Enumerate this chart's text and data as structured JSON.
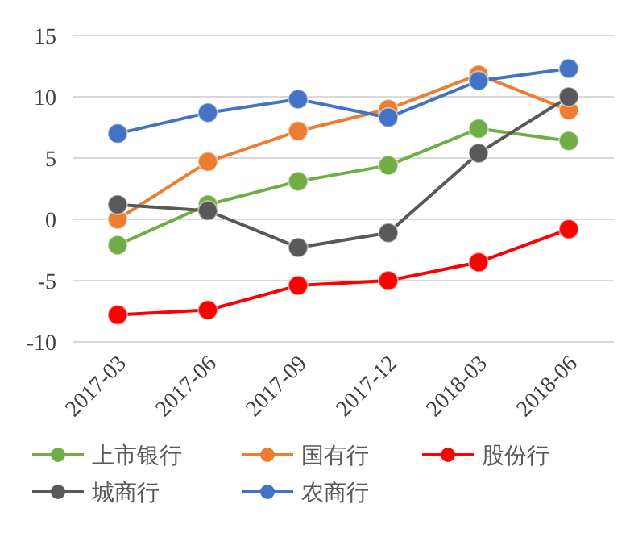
{
  "chart_data": {
    "type": "line",
    "categories": [
      "2017-03",
      "2017-06",
      "2017-09",
      "2017-12",
      "2018-03",
      "2018-06"
    ],
    "series": [
      {
        "name": "上市银行",
        "color": "#70ad47",
        "values": [
          -2.1,
          1.2,
          3.1,
          4.4,
          7.4,
          6.4
        ]
      },
      {
        "name": "国有行",
        "color": "#ed7d31",
        "values": [
          0,
          4.7,
          7.2,
          9.0,
          11.8,
          8.9
        ]
      },
      {
        "name": "股份行",
        "color": "#ff0000",
        "values": [
          -7.8,
          -7.4,
          -5.4,
          -5.0,
          -3.5,
          -0.8
        ]
      },
      {
        "name": "城商行",
        "color": "#595959",
        "values": [
          1.2,
          0.7,
          -2.3,
          -1.1,
          5.4,
          10.0
        ]
      },
      {
        "name": "农商行",
        "color": "#4472c4",
        "values": [
          7.0,
          8.7,
          9.8,
          8.3,
          11.3,
          12.3
        ]
      }
    ],
    "ylim": [
      -10,
      15
    ],
    "yticks": [
      -10,
      -5,
      0,
      5,
      10,
      15
    ],
    "grid": "y",
    "legend": "bottom",
    "marker": "circle",
    "line_style": "solid"
  }
}
